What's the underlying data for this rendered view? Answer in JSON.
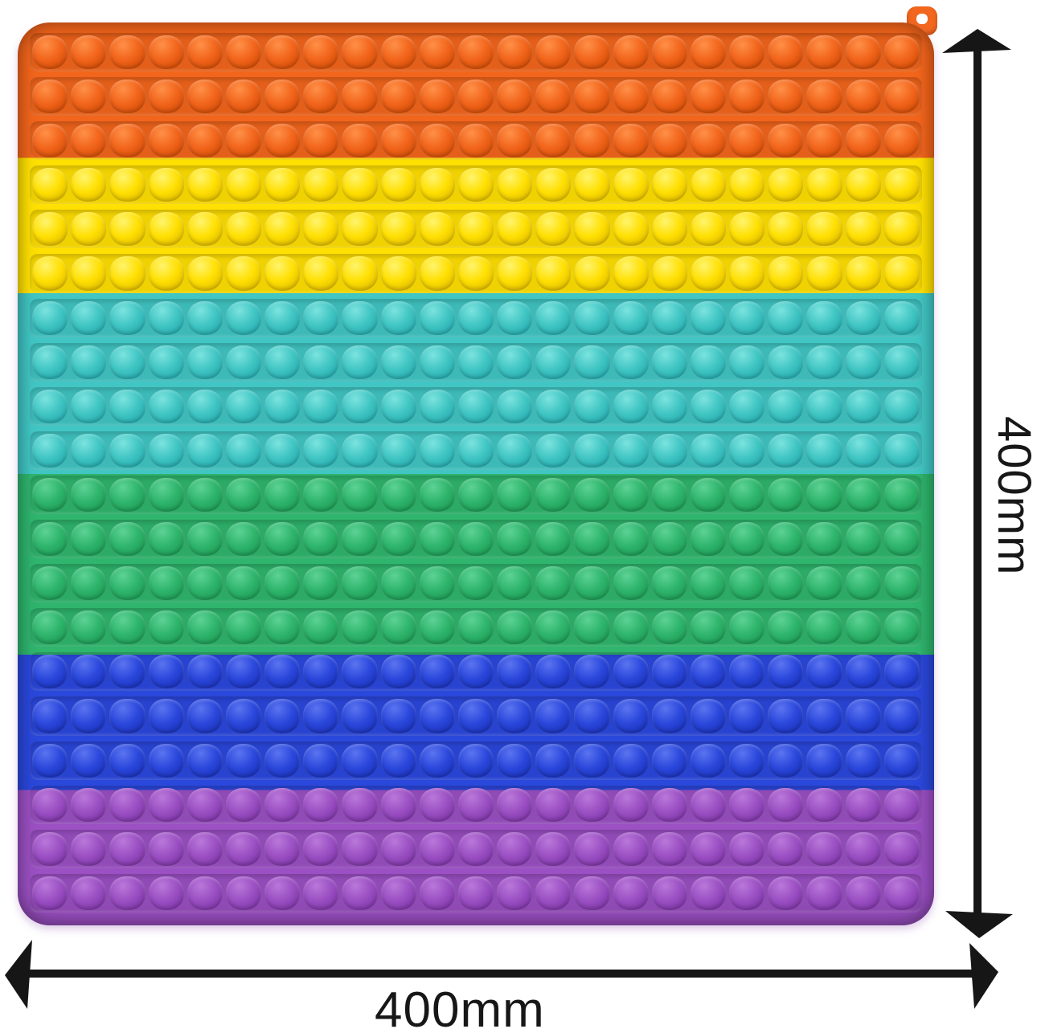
{
  "image": {
    "type": "product-photo",
    "subject": "Rainbow jumbo pop-it bubble fidget toy, square, with size annotations"
  },
  "toy": {
    "grid": {
      "rows": 20,
      "cols": 23
    },
    "bands": [
      {
        "name": "orange",
        "rows": 3,
        "base": "#F2651C",
        "dark": "#D54E07",
        "light": "#FF9048",
        "tray": "#E8560F"
      },
      {
        "name": "yellow",
        "rows": 3,
        "base": "#FFE003",
        "dark": "#E3BE00",
        "light": "#FFF46E",
        "tray": "#F5CF00"
      },
      {
        "name": "cyan",
        "rows": 4,
        "base": "#41C6C4",
        "dark": "#27ACAF",
        "light": "#7CE3DF",
        "tray": "#34B7B7"
      },
      {
        "name": "green",
        "rows": 4,
        "base": "#2FB56D",
        "dark": "#1E9C55",
        "light": "#5DD294",
        "tray": "#26A75F"
      },
      {
        "name": "blue",
        "rows": 3,
        "base": "#2B48DC",
        "dark": "#1B33BC",
        "light": "#5B74F0",
        "tray": "#2139C8"
      },
      {
        "name": "purple",
        "rows": 3,
        "base": "#9B50C3",
        "dark": "#7F37A8",
        "light": "#BA78DA",
        "tray": "#8C41B4"
      }
    ],
    "loop_color": "#F2661E"
  },
  "dimensions": {
    "height_label": "400mm",
    "width_label": "400mm",
    "arrow_color": "#161616"
  }
}
